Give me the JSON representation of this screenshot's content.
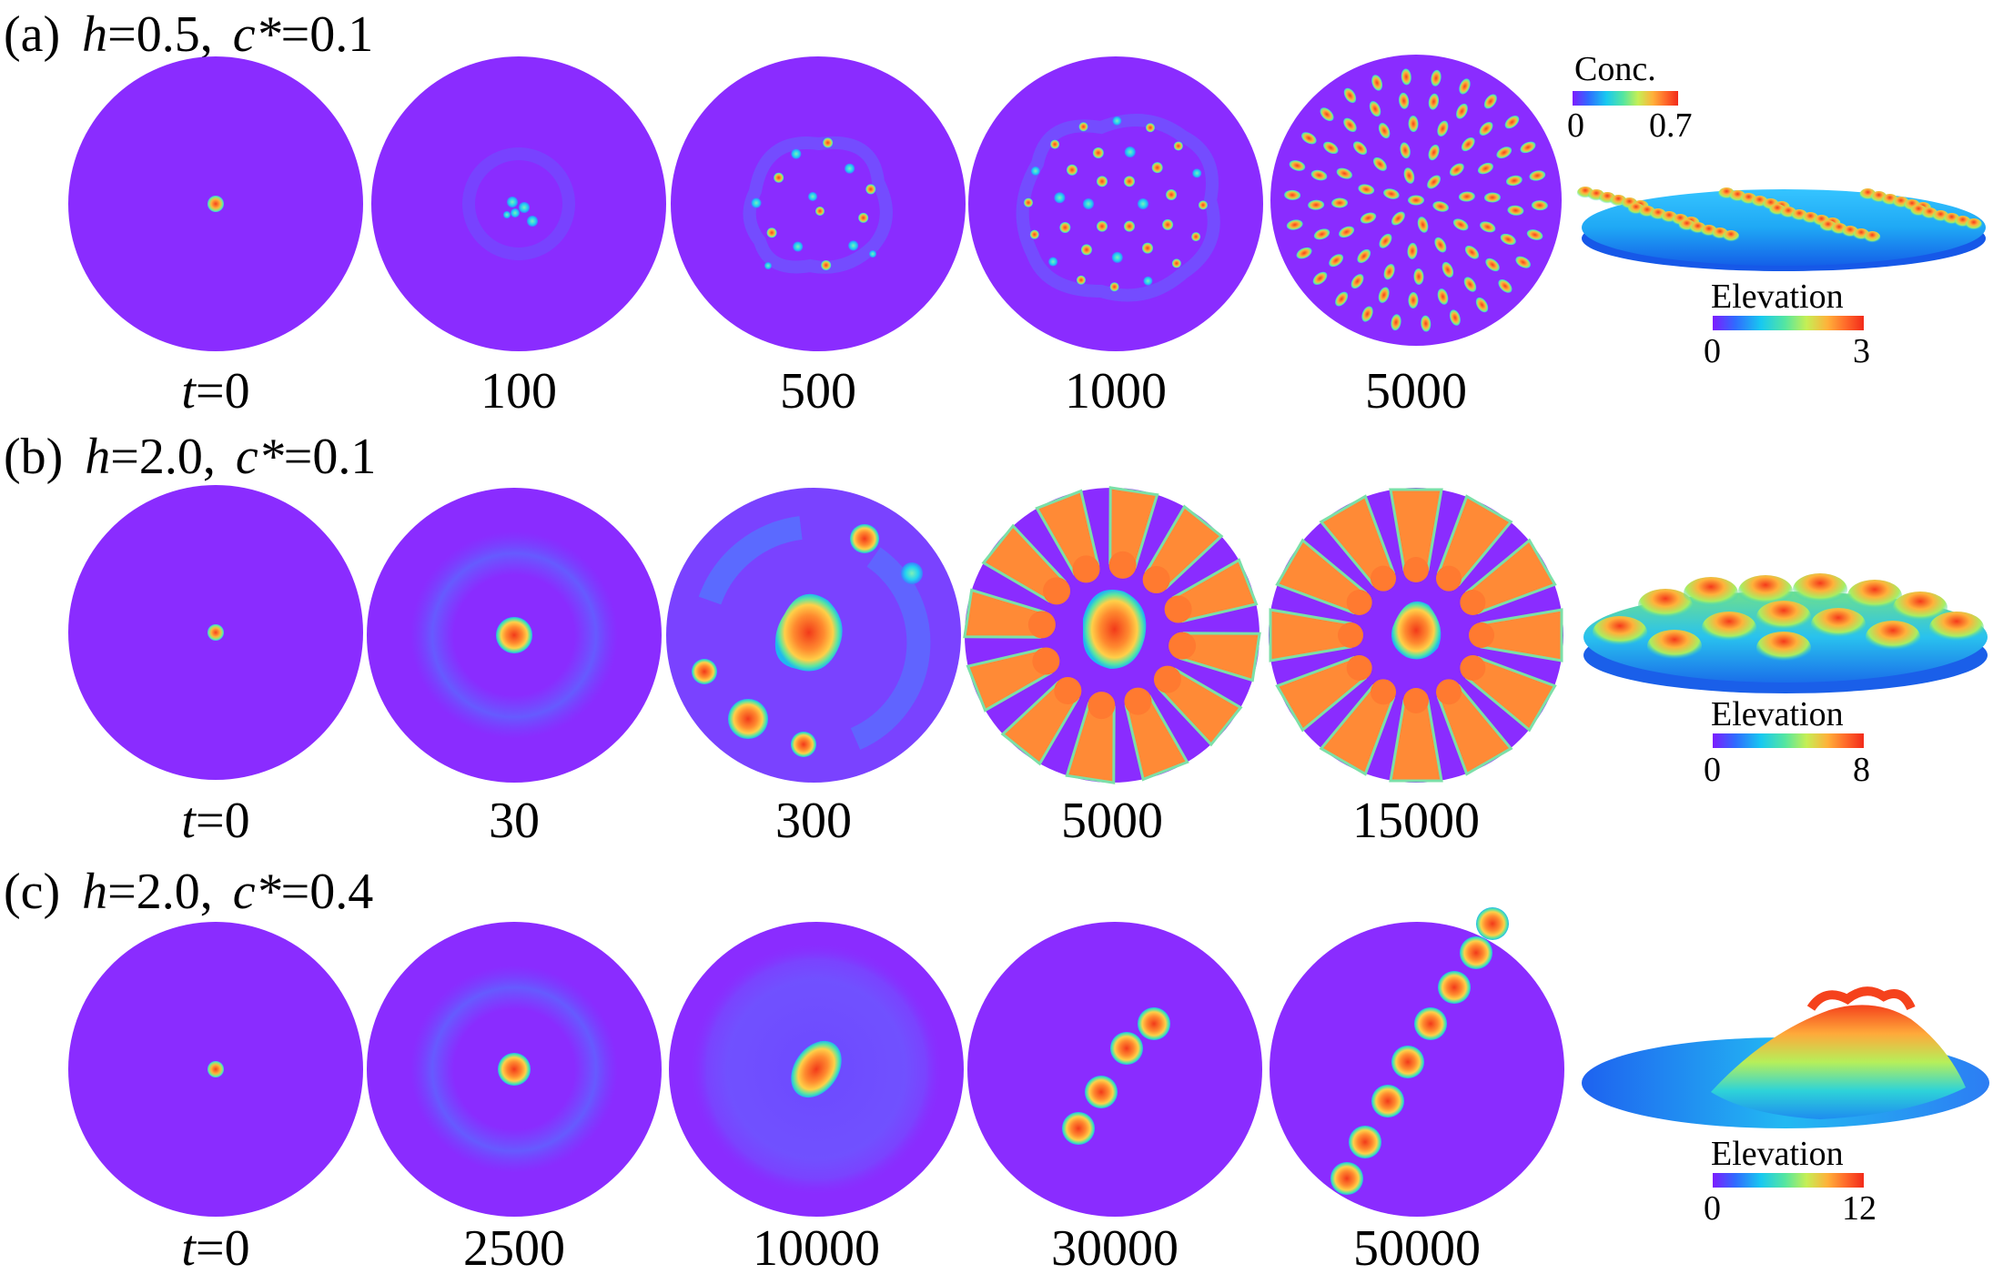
{
  "colors": {
    "background": "#8a2cff",
    "rainbow": [
      "#7d1cff",
      "#2f6bff",
      "#18c9f0",
      "#55e6a0",
      "#c5ef55",
      "#ffb13a",
      "#ff6a2a",
      "#f22a1a"
    ]
  },
  "concentration_colorbar": {
    "title": "Conc.",
    "min_label": "0",
    "max_label": "0.7"
  },
  "rows": [
    {
      "id": "a",
      "panel_letter": "(a)",
      "h_label": "h",
      "h_value": "=0.5,",
      "c_label": "c*",
      "c_value": "=0.1",
      "times": [
        {
          "t_prefix": "t",
          "value": "=0"
        },
        {
          "t_prefix": "",
          "value": "100"
        },
        {
          "t_prefix": "",
          "value": "500"
        },
        {
          "t_prefix": "",
          "value": "1000"
        },
        {
          "t_prefix": "",
          "value": "5000"
        }
      ],
      "elevation_colorbar": {
        "title": "Elevation",
        "min_label": "0",
        "max_label": "3"
      }
    },
    {
      "id": "b",
      "panel_letter": "(b)",
      "h_label": "h",
      "h_value": "=2.0,",
      "c_label": "c*",
      "c_value": "=0.1",
      "times": [
        {
          "t_prefix": "t",
          "value": "=0"
        },
        {
          "t_prefix": "",
          "value": "30"
        },
        {
          "t_prefix": "",
          "value": "300"
        },
        {
          "t_prefix": "",
          "value": "5000"
        },
        {
          "t_prefix": "",
          "value": "15000"
        }
      ],
      "elevation_colorbar": {
        "title": "Elevation",
        "min_label": "0",
        "max_label": "8"
      }
    },
    {
      "id": "c",
      "panel_letter": "(c)",
      "h_label": "h",
      "h_value": "=2.0,",
      "c_label": "c*",
      "c_value": "=0.4",
      "times": [
        {
          "t_prefix": "t",
          "value": "=0"
        },
        {
          "t_prefix": "",
          "value": "2500"
        },
        {
          "t_prefix": "",
          "value": "10000"
        },
        {
          "t_prefix": "",
          "value": "30000"
        },
        {
          "t_prefix": "",
          "value": "50000"
        }
      ],
      "elevation_colorbar": {
        "title": "Elevation",
        "min_label": "0",
        "max_label": "12"
      }
    }
  ]
}
